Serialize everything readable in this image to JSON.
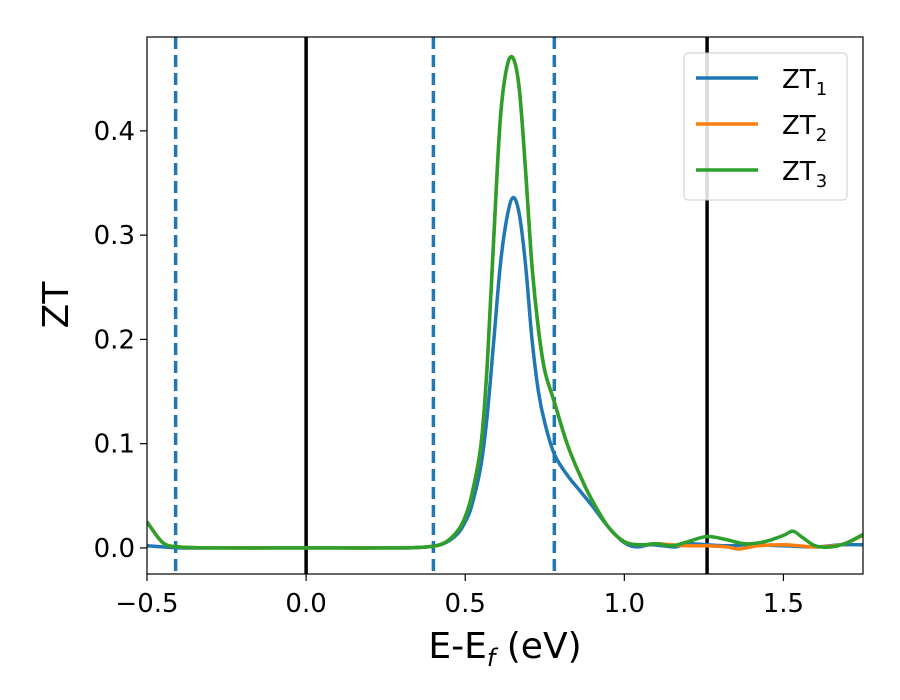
{
  "chart_data": {
    "type": "line",
    "xlabel": "E-E",
    "xlabel_sub": "f",
    "xlabel_unit": " (eV)",
    "ylabel": "ZT",
    "xlim": [
      -0.5,
      1.75
    ],
    "ylim": [
      -0.025,
      0.49
    ],
    "x_ticks": [
      -0.5,
      0.0,
      0.5,
      1.0,
      1.5
    ],
    "x_tick_labels": [
      "−0.5",
      "0.0",
      "0.5",
      "1.0",
      "1.5"
    ],
    "y_ticks": [
      0.0,
      0.1,
      0.2,
      0.3,
      0.4
    ],
    "y_tick_labels": [
      "0.0",
      "0.1",
      "0.2",
      "0.3",
      "0.4"
    ],
    "grid": false,
    "legend_position": "top-right",
    "vertical_lines": [
      {
        "x": -0.41,
        "style": "dashed",
        "color": "#1f77b4"
      },
      {
        "x": 0.0,
        "style": "solid",
        "color": "#000000"
      },
      {
        "x": 0.4,
        "style": "dashed",
        "color": "#1f77b4"
      },
      {
        "x": 0.78,
        "style": "dashed",
        "color": "#1f77b4"
      },
      {
        "x": 1.26,
        "style": "solid",
        "color": "#000000"
      }
    ],
    "series": [
      {
        "name": "ZT",
        "name_sub": "1",
        "color": "#1f77b4",
        "x": [
          -0.5,
          -0.45,
          -0.4,
          -0.3,
          -0.1,
          0.1,
          0.3,
          0.38,
          0.42,
          0.45,
          0.48,
          0.5,
          0.52,
          0.55,
          0.57,
          0.59,
          0.61,
          0.63,
          0.65,
          0.67,
          0.69,
          0.71,
          0.73,
          0.75,
          0.78,
          0.82,
          0.86,
          0.9,
          0.95,
          1.0,
          1.04,
          1.08,
          1.12,
          1.16,
          1.2,
          1.26,
          1.32,
          1.4,
          1.5,
          1.6,
          1.68,
          1.75
        ],
        "y": [
          0.002,
          0.001,
          0.0,
          0.0,
          0.0,
          0.0,
          0.0,
          0.001,
          0.003,
          0.007,
          0.015,
          0.025,
          0.04,
          0.08,
          0.13,
          0.2,
          0.27,
          0.315,
          0.336,
          0.32,
          0.27,
          0.2,
          0.15,
          0.12,
          0.09,
          0.07,
          0.055,
          0.04,
          0.02,
          0.005,
          0.001,
          0.003,
          0.002,
          0.001,
          0.004,
          0.003,
          0.002,
          0.003,
          0.002,
          0.001,
          0.003,
          0.003
        ]
      },
      {
        "name": "ZT",
        "name_sub": "2",
        "color": "#ff7f0e",
        "x": [
          -0.5,
          -0.45,
          -0.4,
          -0.3,
          -0.1,
          0.1,
          0.3,
          0.38,
          0.42,
          0.45,
          0.48,
          0.5,
          0.52,
          0.55,
          0.57,
          0.59,
          0.61,
          0.63,
          0.65,
          0.67,
          0.69,
          0.71,
          0.73,
          0.75,
          0.78,
          0.82,
          0.86,
          0.9,
          0.95,
          1.0,
          1.05,
          1.1,
          1.15,
          1.2,
          1.26,
          1.32,
          1.36,
          1.42,
          1.5,
          1.55,
          1.6,
          1.68,
          1.75
        ],
        "y": [
          0.025,
          0.005,
          0.001,
          0.0,
          0.0,
          0.0,
          0.0,
          0.001,
          0.003,
          0.008,
          0.018,
          0.03,
          0.05,
          0.1,
          0.18,
          0.3,
          0.41,
          0.46,
          0.47,
          0.44,
          0.36,
          0.27,
          0.21,
          0.17,
          0.14,
          0.1,
          0.07,
          0.045,
          0.02,
          0.006,
          0.003,
          0.004,
          0.003,
          0.002,
          0.002,
          0.001,
          -0.001,
          0.002,
          0.003,
          0.002,
          0.001,
          0.003,
          0.012
        ]
      },
      {
        "name": "ZT",
        "name_sub": "3",
        "color": "#2ca02c",
        "x": [
          -0.5,
          -0.45,
          -0.4,
          -0.3,
          -0.1,
          0.1,
          0.3,
          0.38,
          0.42,
          0.45,
          0.48,
          0.5,
          0.52,
          0.55,
          0.57,
          0.59,
          0.61,
          0.63,
          0.65,
          0.67,
          0.69,
          0.71,
          0.73,
          0.75,
          0.78,
          0.82,
          0.86,
          0.9,
          0.95,
          1.0,
          1.05,
          1.1,
          1.15,
          1.2,
          1.26,
          1.32,
          1.38,
          1.44,
          1.5,
          1.53,
          1.56,
          1.6,
          1.65,
          1.7,
          1.75
        ],
        "y": [
          0.025,
          0.005,
          0.001,
          0.0,
          0.0,
          0.0,
          0.0,
          0.001,
          0.003,
          0.008,
          0.018,
          0.03,
          0.05,
          0.1,
          0.18,
          0.3,
          0.41,
          0.46,
          0.47,
          0.44,
          0.36,
          0.27,
          0.21,
          0.17,
          0.14,
          0.1,
          0.07,
          0.045,
          0.02,
          0.006,
          0.003,
          0.004,
          0.002,
          0.006,
          0.011,
          0.008,
          0.004,
          0.006,
          0.012,
          0.016,
          0.01,
          0.002,
          0.001,
          0.005,
          0.013
        ]
      }
    ]
  }
}
